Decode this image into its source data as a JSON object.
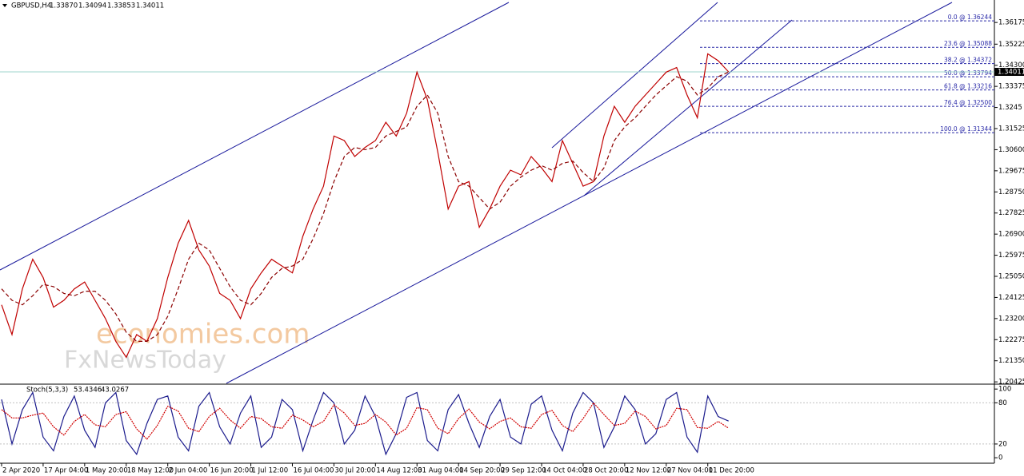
{
  "chart_data": [
    {
      "type": "line",
      "title": "GBPUSD,H4",
      "ohlc": [
        {
          "value": 1.3387,
          "label": "1.33870"
        },
        {
          "value": 1.34094,
          "label": "1.34094"
        },
        {
          "value": 1.33853,
          "label": "1.33853"
        },
        {
          "value": 1.34011,
          "label": "1.34011"
        }
      ],
      "current_price": {
        "value": 1.34011,
        "label": "1.34011"
      },
      "watermark": [
        "economies.com",
        "FxNewsToday"
      ],
      "xlim": [
        0,
        95.6
      ],
      "xticks": [
        {
          "value": 0,
          "label": "2 Apr 2020"
        },
        {
          "value": 4,
          "label": "17 Apr 04:00"
        },
        {
          "value": 8,
          "label": "1 May 20:00"
        },
        {
          "value": 12,
          "label": "18 May 12:00"
        },
        {
          "value": 16,
          "label": "2 Jun 04:00"
        },
        {
          "value": 20,
          "label": "16 Jun 20:00"
        },
        {
          "value": 24,
          "label": "1 Jul 12:00"
        },
        {
          "value": 28,
          "label": "16 Jul 04:00"
        },
        {
          "value": 32,
          "label": "30 Jul 20:00"
        },
        {
          "value": 36,
          "label": "14 Aug 12:00"
        },
        {
          "value": 40,
          "label": "31 Aug 04:00"
        },
        {
          "value": 44,
          "label": "14 Sep 20:00"
        },
        {
          "value": 48,
          "label": "29 Sep 12:00"
        },
        {
          "value": 52,
          "label": "14 Oct 04:00"
        },
        {
          "value": 56,
          "label": "28 Oct 20:00"
        },
        {
          "value": 60,
          "label": "12 Nov 12:00"
        },
        {
          "value": 64,
          "label": "27 Nov 04:00"
        },
        {
          "value": 68,
          "label": "11 Dec 20:00"
        }
      ],
      "ylim": [
        1.2036,
        1.3716
      ],
      "yticks": [
        1.36175,
        1.35225,
        {
          "value": 1.343,
          "label": "1.34300"
        },
        1.33375,
        1.3245,
        1.31525,
        {
          "value": 1.306,
          "label": "1.30600"
        },
        1.29675,
        {
          "value": 1.2875,
          "label": "1.28750"
        },
        1.27825,
        {
          "value": 1.269,
          "label": "1.26900"
        },
        1.25975,
        {
          "value": 1.2505,
          "label": "1.25050"
        },
        1.24125,
        {
          "value": 1.232,
          "label": "1.23200"
        },
        1.22275,
        {
          "value": 1.2135,
          "label": "1.21350"
        },
        1.20425
      ],
      "series": [
        {
          "name": "Close",
          "color": "#c00000",
          "values": [
            1.238,
            1.225,
            1.245,
            1.258,
            1.25,
            1.237,
            1.24,
            1.245,
            1.248,
            1.24,
            1.232,
            1.222,
            1.215,
            1.225,
            1.222,
            1.232,
            1.25,
            1.265,
            1.275,
            1.262,
            1.255,
            1.243,
            1.24,
            1.232,
            1.245,
            1.252,
            1.258,
            1.255,
            1.252,
            1.268,
            1.28,
            1.29,
            1.312,
            1.31,
            1.303,
            1.307,
            1.31,
            1.318,
            1.312,
            1.322,
            1.34,
            1.328,
            1.305,
            1.28,
            1.29,
            1.292,
            1.272,
            1.28,
            1.29,
            1.297,
            1.295,
            1.303,
            1.298,
            1.292,
            1.31,
            1.3,
            1.29,
            1.292,
            1.312,
            1.325,
            1.318,
            1.325,
            1.33,
            1.335,
            1.34,
            1.342,
            1.33,
            1.32,
            1.348,
            1.345,
            1.3401
          ]
        },
        {
          "name": "MA",
          "color": "#8b0000",
          "values": [
            1.245,
            1.24,
            1.238,
            1.242,
            1.247,
            1.246,
            1.243,
            1.242,
            1.244,
            1.244,
            1.24,
            1.234,
            1.226,
            1.222,
            1.222,
            1.225,
            1.233,
            1.245,
            1.258,
            1.265,
            1.262,
            1.254,
            1.246,
            1.24,
            1.238,
            1.243,
            1.25,
            1.254,
            1.255,
            1.258,
            1.267,
            1.278,
            1.292,
            1.303,
            1.307,
            1.306,
            1.307,
            1.312,
            1.314,
            1.316,
            1.325,
            1.33,
            1.322,
            1.303,
            1.292,
            1.29,
            1.285,
            1.28,
            1.283,
            1.29,
            1.294,
            1.297,
            1.299,
            1.297,
            1.3,
            1.301,
            1.296,
            1.292,
            1.298,
            1.31,
            1.316,
            1.32,
            1.325,
            1.33,
            1.334,
            1.338,
            1.336,
            1.33,
            1.333,
            1.338,
            1.34
          ]
        }
      ],
      "fibonacci": [
        {
          "price": 1.36244,
          "label": "0.0 @ 1.36244"
        },
        {
          "price": 1.35088,
          "label": "23.6 @ 1.35088"
        },
        {
          "price": 1.34372,
          "label": "38.2 @ 1.34372"
        },
        {
          "price": 1.33794,
          "label": "50.0 @ 1.33794"
        },
        {
          "price": 1.33216,
          "label": "61.8 @ 1.33216"
        },
        {
          "price": 1.325,
          "label": "76.4 @ 1.32500"
        },
        {
          "price": 1.31344,
          "label": "100.0 @ 1.31344"
        }
      ],
      "fib_color": "#2a2aa8"
    },
    {
      "type": "line",
      "title": "Stoch(5,3,3)",
      "readout": [
        53.4346,
        43.0267
      ],
      "ylim": [
        -8,
        106
      ],
      "yticks": [
        0,
        20,
        80,
        100
      ],
      "levels": [
        20,
        80
      ],
      "series": [
        {
          "name": "%K",
          "color": "#1a1a8c",
          "values": [
            85,
            20,
            70,
            95,
            30,
            10,
            60,
            90,
            40,
            15,
            80,
            95,
            25,
            5,
            50,
            85,
            90,
            30,
            10,
            75,
            95,
            45,
            20,
            65,
            90,
            15,
            30,
            85,
            70,
            10,
            55,
            95,
            80,
            20,
            40,
            90,
            60,
            5,
            35,
            88,
            95,
            25,
            10,
            70,
            92,
            50,
            15,
            60,
            85,
            30,
            20,
            78,
            90,
            40,
            10,
            65,
            95,
            80,
            15,
            45,
            90,
            70,
            20,
            35,
            85,
            95,
            30,
            8,
            90,
            60,
            53.4346
          ]
        },
        {
          "name": "%D",
          "color": "#d00000",
          "values": [
            70,
            58,
            58,
            62,
            65,
            45,
            33,
            53,
            63,
            48,
            45,
            63,
            67,
            42,
            27,
            47,
            75,
            68,
            43,
            38,
            60,
            72,
            55,
            43,
            60,
            57,
            45,
            43,
            62,
            55,
            45,
            53,
            77,
            65,
            47,
            50,
            63,
            52,
            33,
            43,
            73,
            70,
            43,
            35,
            57,
            71,
            52,
            42,
            53,
            58,
            45,
            43,
            63,
            69,
            47,
            38,
            57,
            80,
            63,
            47,
            50,
            68,
            60,
            42,
            47,
            72,
            70,
            44,
            43,
            53,
            43.0267
          ]
        }
      ]
    }
  ]
}
